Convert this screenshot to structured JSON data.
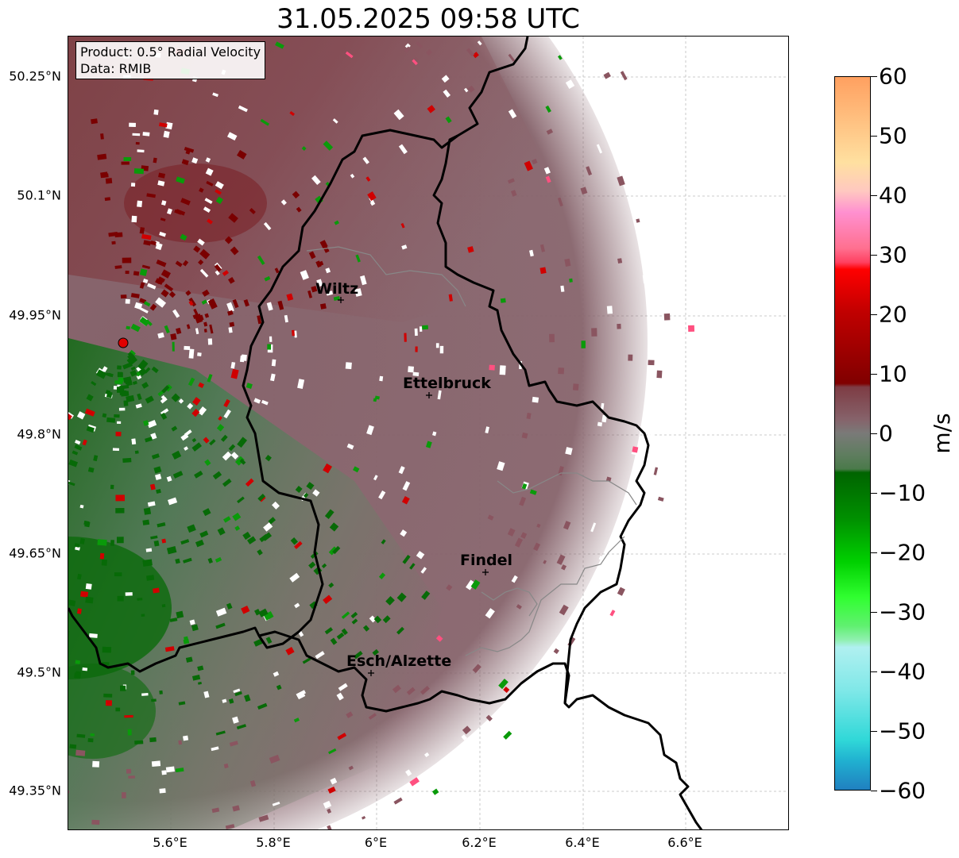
{
  "title": "31.05.2025 09:58 UTC",
  "info": {
    "product": "Product: 0.5° Radial Velocity",
    "data": "Data: RMIB"
  },
  "lat_ticks": [
    "50.25°N",
    "50.1°N",
    "49.95°N",
    "49.8°N",
    "49.65°N",
    "49.5°N",
    "49.35°N"
  ],
  "lon_ticks": [
    "5.6°E",
    "5.8°E",
    "6°E",
    "6.2°E",
    "6.4°E",
    "6.6°E"
  ],
  "cities": [
    {
      "name": "Wiltz"
    },
    {
      "name": "Ettelbruck"
    },
    {
      "name": "Findel"
    },
    {
      "name": "Esch/Alzette"
    }
  ],
  "colorbar": {
    "unit": "m/s",
    "ticks": [
      "60",
      "50",
      "40",
      "30",
      "20",
      "10",
      "0",
      "−10",
      "−20",
      "−30",
      "−40",
      "−50",
      "−60"
    ],
    "range": [
      -60,
      60
    ]
  },
  "colors": {
    "radar_site": "#e00000",
    "border": "#000000",
    "inner_border": "#888888"
  }
}
